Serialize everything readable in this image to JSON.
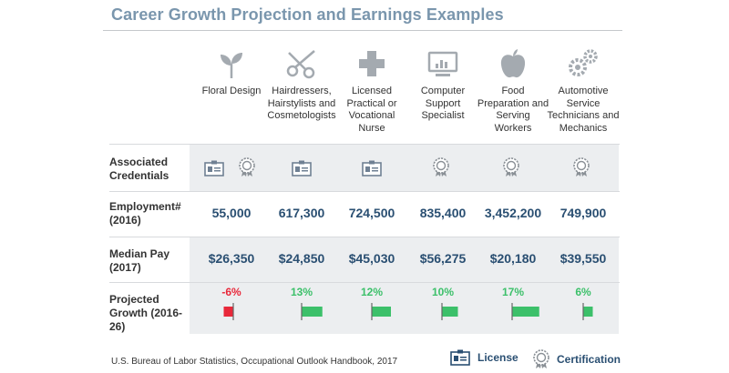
{
  "title": "Career Growth Projection and Earnings Examples",
  "occupations": [
    {
      "label": "Floral Design",
      "icon": "plant-sprout-icon"
    },
    {
      "label": "Hairdressers, Hairstylists and Cosmetologists",
      "icon": "scissors-icon"
    },
    {
      "label": "Licensed Practical or Vocational Nurse",
      "icon": "medical-cross-icon"
    },
    {
      "label": "Computer Support Specialist",
      "icon": "computer-monitor-icon"
    },
    {
      "label": "Food Preparation and Serving Workers",
      "icon": "apple-icon"
    },
    {
      "label": "Automotive Service Technicians and Mechanics",
      "icon": "gears-icon"
    }
  ],
  "row_labels": {
    "credentials": "Associated Credentials",
    "employment": "Employment# (2016)",
    "pay": "Median Pay (2017)",
    "growth": "Projected Growth (2016-26)"
  },
  "credentials": [
    [
      "license",
      "certification"
    ],
    [
      "license"
    ],
    [
      "license"
    ],
    [
      "certification"
    ],
    [
      "certification"
    ],
    [
      "certification"
    ]
  ],
  "chart_data": {
    "type": "table",
    "columns": [
      "Floral Design",
      "Hairdressers, Hairstylists and Cosmetologists",
      "Licensed Practical or Vocational Nurse",
      "Computer Support Specialist",
      "Food Preparation and Serving Workers",
      "Automotive Service Technicians and Mechanics"
    ],
    "employment_2016": [
      "55,000",
      "617,300",
      "724,500",
      "835,400",
      "3,452,200",
      "749,900"
    ],
    "median_pay_2017": [
      "$26,350",
      "$24,850",
      "$45,030",
      "$56,275",
      "$20,180",
      "$39,550"
    ],
    "projected_growth": {
      "labels": [
        "-6%",
        "13%",
        "12%",
        "10%",
        "17%",
        "6%"
      ],
      "values": [
        -6,
        13,
        12,
        10,
        17,
        6
      ]
    }
  },
  "colors": {
    "title": "#7a96ad",
    "number": "#2a4f72",
    "band": "#eceef0",
    "positive": "#3cc06a",
    "negative": "#e8283a",
    "icon": "#a4aab0"
  },
  "footer": "U.S. Bureau of Labor Statistics, Occupational Outlook Handbook, 2017",
  "legend": {
    "license": "License",
    "certification": "Certification"
  }
}
